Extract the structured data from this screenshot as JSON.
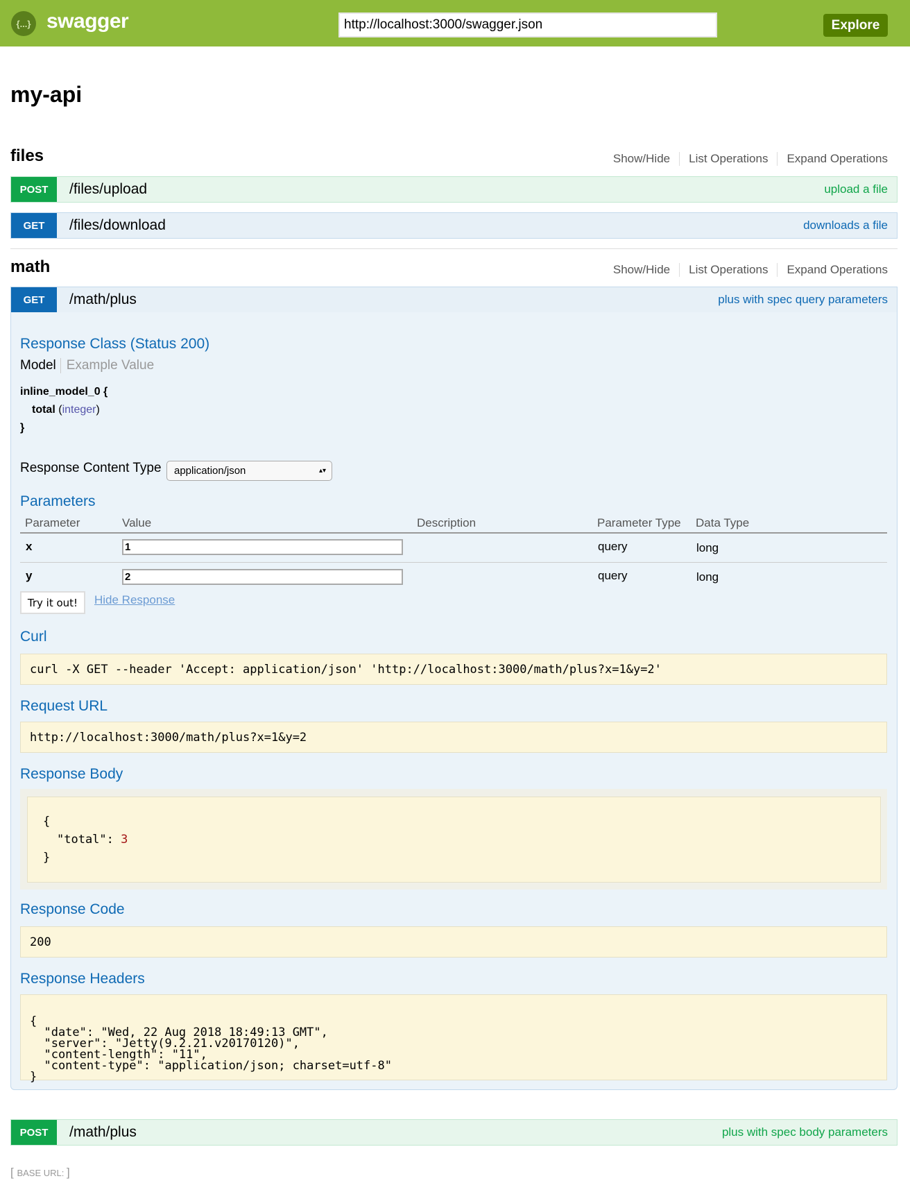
{
  "header": {
    "brand": "swagger",
    "logo_glyph": "{...}",
    "url_value": "http://localhost:3000/swagger.json",
    "explore_label": "Explore"
  },
  "api_title": "my-api",
  "resources": [
    {
      "name": "files",
      "links": [
        "Show/Hide",
        "List Operations",
        "Expand Operations"
      ],
      "operations": [
        {
          "method": "POST",
          "path": "/files/upload",
          "summary": "upload a file"
        },
        {
          "method": "GET",
          "path": "/files/download",
          "summary": "downloads a file"
        }
      ]
    },
    {
      "name": "math",
      "links": [
        "Show/Hide",
        "List Operations",
        "Expand Operations"
      ],
      "operations": [
        {
          "method": "GET",
          "path": "/math/plus",
          "summary": "plus with spec query parameters"
        },
        {
          "method": "POST",
          "path": "/math/plus",
          "summary": "plus with spec body parameters"
        }
      ]
    }
  ],
  "expanded": {
    "response_class": "Response Class (Status 200)",
    "model_tab": "Model",
    "example_tab": "Example Value",
    "model_name": "inline_model_0 {",
    "model_field": "total",
    "model_type_open": " (",
    "model_type": "integer",
    "model_type_close": ")",
    "model_close": "}",
    "content_type_label": "Response Content Type",
    "content_type_value": "application/json",
    "parameters_title": "Parameters",
    "param_headers": [
      "Parameter",
      "Value",
      "Description",
      "Parameter Type",
      "Data Type"
    ],
    "params": [
      {
        "name": "x",
        "value": "1",
        "param_type": "query",
        "data_type": "long"
      },
      {
        "name": "y",
        "value": "2",
        "param_type": "query",
        "data_type": "long"
      }
    ],
    "try_label": "Try it out!",
    "hide_label": "Hide Response",
    "curl_title": "Curl",
    "curl": "curl -X GET --header 'Accept: application/json' 'http://localhost:3000/math/plus?x=1&y=2'",
    "request_url_title": "Request URL",
    "request_url": "http://localhost:3000/math/plus?x=1&y=2",
    "response_body_title": "Response Body",
    "body_open": "{",
    "body_key": "\"total\": ",
    "body_value": "3",
    "body_close": "}",
    "response_code_title": "Response Code",
    "response_code": "200",
    "response_headers_title": "Response Headers",
    "headers_lines": [
      "{",
      "  \"date\": \"Wed, 22 Aug 2018 18:49:13 GMT\",",
      "  \"server\": \"Jetty(9.2.21.v20170120)\",",
      "  \"content-length\": \"11\",",
      "  \"content-type\": \"application/json; charset=utf-8\"",
      "}"
    ]
  },
  "footer": {
    "base_url_label": "BASE URL: "
  },
  "colors": {
    "header": "#8fba3a",
    "post": "#10a54a",
    "get": "#0f6ab4",
    "explore": "#547f00"
  }
}
